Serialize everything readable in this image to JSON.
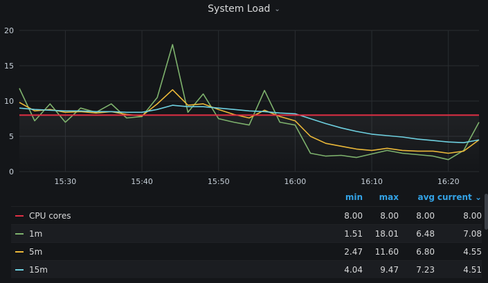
{
  "panel": {
    "title": "System Load"
  },
  "legend": {
    "headers": {
      "min": "min",
      "max": "max",
      "avg": "avg",
      "current": "current"
    },
    "rows": [
      {
        "name": "CPU cores",
        "color": "#e02f44",
        "min": "8.00",
        "max": "8.00",
        "avg": "8.00",
        "current": "8.00"
      },
      {
        "name": "1m",
        "color": "#7eb26d",
        "min": "1.51",
        "max": "18.01",
        "avg": "6.48",
        "current": "7.08"
      },
      {
        "name": "5m",
        "color": "#eab839",
        "min": "2.47",
        "max": "11.60",
        "avg": "6.80",
        "current": "4.55"
      },
      {
        "name": "15m",
        "color": "#6ed0e0",
        "min": "4.04",
        "max": "9.47",
        "avg": "7.23",
        "current": "4.51"
      }
    ]
  },
  "chart_data": {
    "type": "line",
    "ylim": [
      0,
      20
    ],
    "xlim": [
      "15:24",
      "16:24"
    ],
    "y_ticks": [
      "0",
      "5",
      "10",
      "15",
      "20"
    ],
    "x_ticks": [
      "15:30",
      "15:40",
      "15:50",
      "16:00",
      "16:10",
      "16:20"
    ],
    "grid": true,
    "x": [
      "15:24",
      "15:26",
      "15:28",
      "15:30",
      "15:32",
      "15:34",
      "15:36",
      "15:38",
      "15:40",
      "15:42",
      "15:44",
      "15:46",
      "15:48",
      "15:50",
      "15:52",
      "15:54",
      "15:56",
      "15:58",
      "16:00",
      "16:02",
      "16:04",
      "16:06",
      "16:08",
      "16:10",
      "16:12",
      "16:14",
      "16:16",
      "16:18",
      "16:20",
      "16:22",
      "16:24"
    ],
    "series": [
      {
        "name": "CPU cores",
        "color": "#e02f44",
        "values": [
          8,
          8,
          8,
          8,
          8,
          8,
          8,
          8,
          8,
          8,
          8,
          8,
          8,
          8,
          8,
          8,
          8,
          8,
          8,
          8,
          8,
          8,
          8,
          8,
          8,
          8,
          8,
          8,
          8,
          8,
          8
        ]
      },
      {
        "name": "1m",
        "color": "#7eb26d",
        "values": [
          11.8,
          7.2,
          9.6,
          7.0,
          9.0,
          8.4,
          9.6,
          7.6,
          7.8,
          10.5,
          18.0,
          8.4,
          11.0,
          7.5,
          7.0,
          6.6,
          11.5,
          7.0,
          6.6,
          2.6,
          2.2,
          2.3,
          2.0,
          2.5,
          3.0,
          2.6,
          2.4,
          2.2,
          1.7,
          3.0,
          7.0
        ]
      },
      {
        "name": "5m",
        "color": "#eab839",
        "values": [
          9.8,
          8.6,
          8.8,
          8.4,
          8.5,
          8.3,
          8.5,
          8.1,
          7.9,
          9.6,
          11.6,
          9.4,
          9.6,
          8.8,
          8.1,
          7.6,
          8.7,
          7.8,
          7.2,
          5.0,
          4.0,
          3.6,
          3.2,
          3.0,
          3.3,
          3.0,
          2.9,
          2.9,
          2.6,
          2.9,
          4.5
        ]
      },
      {
        "name": "15m",
        "color": "#6ed0e0",
        "values": [
          9.0,
          8.8,
          8.7,
          8.6,
          8.6,
          8.5,
          8.5,
          8.4,
          8.4,
          8.8,
          9.4,
          9.2,
          9.2,
          9.0,
          8.8,
          8.6,
          8.5,
          8.3,
          8.2,
          7.5,
          6.8,
          6.2,
          5.7,
          5.3,
          5.1,
          4.9,
          4.6,
          4.4,
          4.2,
          4.1,
          4.5
        ]
      }
    ]
  }
}
